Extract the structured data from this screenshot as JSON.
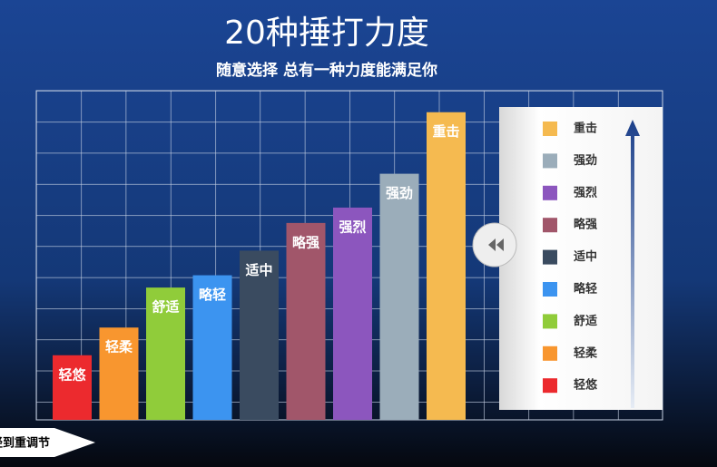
{
  "title": "20种捶打力度",
  "subtitle": "随意选择 总有一种力度能满足你",
  "chart_data": {
    "type": "bar",
    "categories": [
      "轻悠",
      "轻柔",
      "舒适",
      "略轻",
      "适中",
      "略强",
      "强烈",
      "强劲",
      "重击"
    ],
    "values": [
      2.1,
      3.0,
      4.3,
      4.7,
      5.5,
      6.4,
      6.9,
      8.0,
      10.0
    ],
    "colors": [
      "#ec2a2e",
      "#f8962f",
      "#90cc3a",
      "#3c94f0",
      "#3a4b60",
      "#a1566a",
      "#8c56be",
      "#9badba",
      "#f5ba50"
    ],
    "ylim": [
      0,
      10.7
    ]
  },
  "slider_label": "轻到重调节"
}
